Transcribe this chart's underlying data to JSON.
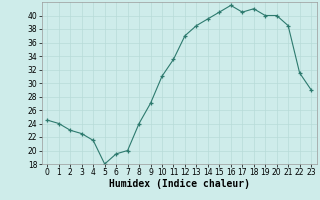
{
  "x": [
    0,
    1,
    2,
    3,
    4,
    5,
    6,
    7,
    8,
    9,
    10,
    11,
    12,
    13,
    14,
    15,
    16,
    17,
    18,
    19,
    20,
    21,
    22,
    23
  ],
  "y": [
    24.5,
    24.0,
    23.0,
    22.5,
    21.5,
    18.0,
    19.5,
    20.0,
    24.0,
    27.0,
    31.0,
    33.5,
    37.0,
    38.5,
    39.5,
    40.5,
    41.5,
    40.5,
    41.0,
    40.0,
    40.0,
    38.5,
    31.5,
    29.0
  ],
  "xlabel": "Humidex (Indice chaleur)",
  "ylim": [
    18,
    42
  ],
  "xlim": [
    -0.5,
    23.5
  ],
  "yticks": [
    18,
    20,
    22,
    24,
    26,
    28,
    30,
    32,
    34,
    36,
    38,
    40
  ],
  "xticks": [
    0,
    1,
    2,
    3,
    4,
    5,
    6,
    7,
    8,
    9,
    10,
    11,
    12,
    13,
    14,
    15,
    16,
    17,
    18,
    19,
    20,
    21,
    22,
    23
  ],
  "line_color": "#2d7a6e",
  "marker_color": "#2d7a6e",
  "bg_color": "#ceecea",
  "grid_color": "#b8dbd8",
  "tick_fontsize": 5.5,
  "xlabel_fontsize": 7
}
